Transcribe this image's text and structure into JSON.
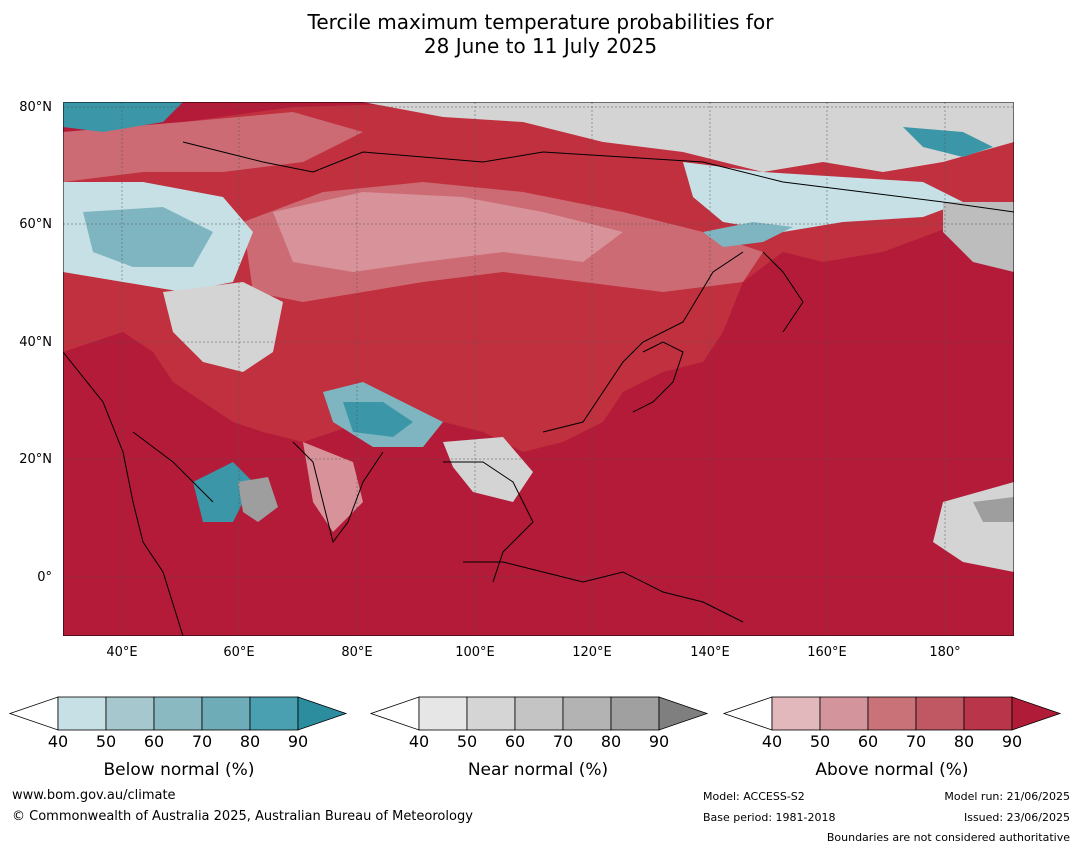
{
  "title": {
    "line1": "Tercile maximum temperature probabilities for",
    "line2": "28 June to 11 July 2025"
  },
  "map": {
    "lat_labels": [
      "80°N",
      "60°N",
      "40°N",
      "20°N",
      "0°"
    ],
    "lon_labels": [
      "40°E",
      "60°E",
      "80°E",
      "100°E",
      "120°E",
      "140°E",
      "160°E",
      "180°"
    ],
    "colors": {
      "ocean_above": "#b31b38",
      "land_above_high": "#c0303f",
      "land_above_mid": "#cd6b74",
      "land_above_low": "#d8929a",
      "near_normal": "#d4d4d4",
      "below_low": "#c6e0e6",
      "below_mid": "#7fb5c0",
      "below_high": "#3b97a8"
    }
  },
  "legends": [
    {
      "name": "Below normal (%)",
      "ticks": [
        "40",
        "50",
        "60",
        "70",
        "80",
        "90"
      ],
      "colors": [
        "#ffffff",
        "#c7e0e6",
        "#a5c7cd",
        "#8bb9c2",
        "#6eacb8",
        "#4aa0b0",
        "#2c8d9f"
      ]
    },
    {
      "name": "Near normal (%)",
      "ticks": [
        "40",
        "50",
        "60",
        "70",
        "80",
        "90"
      ],
      "colors": [
        "#ffffff",
        "#e6e6e6",
        "#d5d5d5",
        "#c4c4c4",
        "#b3b3b3",
        "#a0a0a0",
        "#7f7f7f"
      ]
    },
    {
      "name": "Above normal (%)",
      "ticks": [
        "40",
        "50",
        "60",
        "70",
        "80",
        "90"
      ],
      "colors": [
        "#ffffff",
        "#e3b8bd",
        "#d4949b",
        "#c97379",
        "#c05864",
        "#b9364a",
        "#b01c37"
      ]
    }
  ],
  "footer": {
    "website": "www.bom.gov.au/climate",
    "copyright": "© Commonwealth of Australia 2025, Australian Bureau of Meteorology",
    "model": "Model: ACCESS-S2",
    "base_period": "Base period: 1981-2018",
    "model_run": "Model run: 21/06/2025",
    "issued": "Issued: 23/06/2025",
    "disclaimer": "Boundaries are not considered authoritative"
  }
}
